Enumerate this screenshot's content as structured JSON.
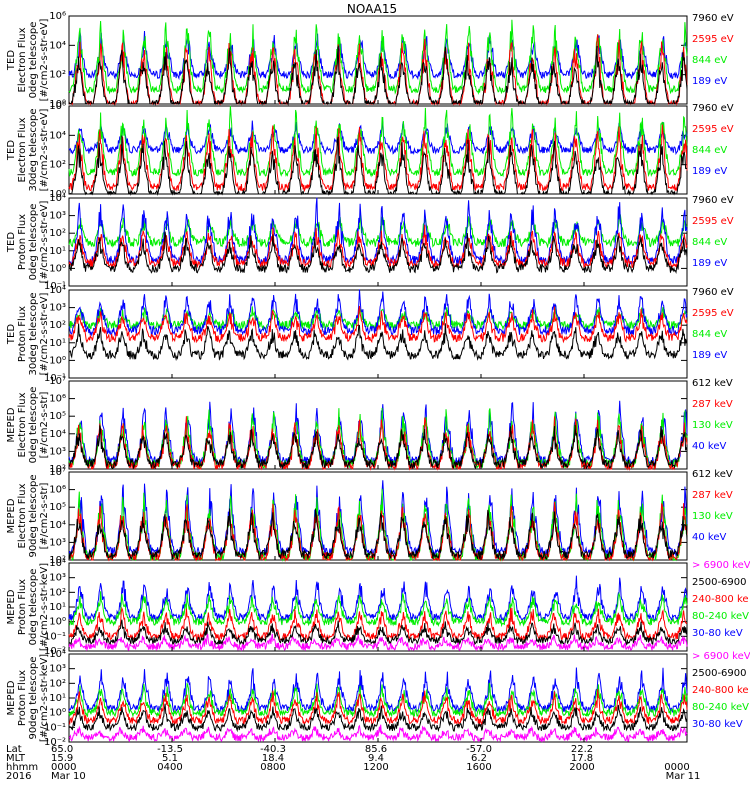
{
  "title": "NOAA15",
  "colors": {
    "blue": "#0000ff",
    "red": "#ff0000",
    "green": "#00ee00",
    "black": "#000000",
    "magenta": "#ff00ff"
  },
  "chart_data": [
    {
      "type": "line",
      "ylabel": [
        "TED",
        "Electron Flux",
        "0deg telescope",
        "[#/cm2-s-str-eV]"
      ],
      "scale": "log",
      "ylim": [
        1,
        1000000
      ],
      "yticks": [
        "10⁰",
        "10²",
        "10⁴",
        "10⁶"
      ],
      "legend": [
        {
          "label": "7960 eV",
          "color": "#000000"
        },
        {
          "label": "2595 eV",
          "color": "#ff0000"
        },
        {
          "label": "844 eV",
          "color": "#00ee00"
        },
        {
          "label": "189 eV",
          "color": "#0000ff"
        }
      ],
      "series": [
        {
          "name": "189 eV",
          "color": "#0000ff",
          "base": 100,
          "peak": 100000
        },
        {
          "name": "844 eV",
          "color": "#00ee00",
          "base": 10,
          "peak": 1000000
        },
        {
          "name": "2595 eV",
          "color": "#ff0000",
          "base": 1,
          "peak": 100000
        },
        {
          "name": "7960 eV",
          "color": "#000000",
          "base": 1,
          "peak": 10000
        }
      ]
    },
    {
      "type": "line",
      "ylabel": [
        "TED",
        "Electron Flux",
        "30deg telescope",
        "[#/cm2-s-str-eV]"
      ],
      "scale": "log",
      "ylim": [
        1,
        1000000
      ],
      "yticks": [
        "10⁰",
        "10²",
        "10⁴",
        "10⁶"
      ],
      "legend": [
        {
          "label": "7960 eV",
          "color": "#000000"
        },
        {
          "label": "2595 eV",
          "color": "#ff0000"
        },
        {
          "label": "844 eV",
          "color": "#00ee00"
        },
        {
          "label": "189 eV",
          "color": "#0000ff"
        }
      ],
      "series": [
        {
          "name": "189 eV",
          "color": "#0000ff",
          "base": 1000,
          "peak": 100000
        },
        {
          "name": "844 eV",
          "color": "#00ee00",
          "base": 30,
          "peak": 1000000
        },
        {
          "name": "2595 eV",
          "color": "#ff0000",
          "base": 3,
          "peak": 100000
        },
        {
          "name": "7960 eV",
          "color": "#000000",
          "base": 1,
          "peak": 10000
        }
      ]
    },
    {
      "type": "line",
      "ylabel": [
        "TED",
        "Proton Flux",
        "0deg telescope",
        "[#/cm2-s-str-eV]"
      ],
      "scale": "log",
      "ylim": [
        0.1,
        10000
      ],
      "yticks": [
        "10⁻¹",
        "10⁰",
        "10¹",
        "10²",
        "10³",
        "10⁴"
      ],
      "legend": [
        {
          "label": "7960 eV",
          "color": "#000000"
        },
        {
          "label": "2595 eV",
          "color": "#ff0000"
        },
        {
          "label": "844 eV",
          "color": "#00ee00"
        },
        {
          "label": "189 eV",
          "color": "#0000ff"
        }
      ],
      "series": [
        {
          "name": "844 eV",
          "color": "#00ee00",
          "base": 30,
          "peak": 1000
        },
        {
          "name": "189 eV",
          "color": "#0000ff",
          "base": 3,
          "peak": 10000
        },
        {
          "name": "2595 eV",
          "color": "#ff0000",
          "base": 2,
          "peak": 300
        },
        {
          "name": "7960 eV",
          "color": "#000000",
          "base": 1,
          "peak": 100
        }
      ]
    },
    {
      "type": "line",
      "ylabel": [
        "TED",
        "Proton Flux",
        "30deg telescope",
        "[#/cm2-s-str-eV]"
      ],
      "scale": "log",
      "ylim": [
        0.1,
        10000
      ],
      "yticks": [
        "10⁻¹",
        "10⁰",
        "10¹",
        "10²",
        "10³",
        "10⁴"
      ],
      "legend": [
        {
          "label": "7960 eV",
          "color": "#000000"
        },
        {
          "label": "2595 eV",
          "color": "#ff0000"
        },
        {
          "label": "844 eV",
          "color": "#00ee00"
        },
        {
          "label": "189 eV",
          "color": "#0000ff"
        }
      ],
      "series": [
        {
          "name": "844 eV",
          "color": "#00ee00",
          "base": 100,
          "peak": 1000
        },
        {
          "name": "189 eV",
          "color": "#0000ff",
          "base": 50,
          "peak": 10000
        },
        {
          "name": "2595 eV",
          "color": "#ff0000",
          "base": 20,
          "peak": 1000
        },
        {
          "name": "7960 eV",
          "color": "#000000",
          "base": 2,
          "peak": 100
        }
      ]
    },
    {
      "type": "line",
      "ylabel": [
        "MEPED",
        "Electron Flux",
        "0deg telescope",
        "[#/cm2-s-str]"
      ],
      "scale": "log",
      "ylim": [
        100,
        10000000
      ],
      "yticks": [
        "10²",
        "10³",
        "10⁴",
        "10⁵",
        "10⁶",
        "10⁷"
      ],
      "legend": [
        {
          "label": "612 keV",
          "color": "#000000"
        },
        {
          "label": "287 keV",
          "color": "#ff0000"
        },
        {
          "label": "130 keV",
          "color": "#00ee00"
        },
        {
          "label": "40 keV",
          "color": "#0000ff"
        }
      ],
      "series": [
        {
          "name": "40 keV",
          "color": "#0000ff",
          "base": 300,
          "peak": 1000000
        },
        {
          "name": "130 keV",
          "color": "#00ee00",
          "base": 200,
          "peak": 300000
        },
        {
          "name": "287 keV",
          "color": "#ff0000",
          "base": 150,
          "peak": 100000
        },
        {
          "name": "612 keV",
          "color": "#000000",
          "base": 200,
          "peak": 30000
        }
      ]
    },
    {
      "type": "line",
      "ylabel": [
        "MEPED",
        "Electron Flux",
        "90deg telescope",
        "[#/cm2-s-str]"
      ],
      "scale": "log",
      "ylim": [
        100,
        10000000
      ],
      "yticks": [
        "10²",
        "10³",
        "10⁴",
        "10⁵",
        "10⁶",
        "10⁷"
      ],
      "legend": [
        {
          "label": "612 keV",
          "color": "#000000"
        },
        {
          "label": "287 keV",
          "color": "#ff0000"
        },
        {
          "label": "130 keV",
          "color": "#00ee00"
        },
        {
          "label": "40 keV",
          "color": "#0000ff"
        }
      ],
      "series": [
        {
          "name": "40 keV",
          "color": "#0000ff",
          "base": 300,
          "peak": 3000000
        },
        {
          "name": "130 keV",
          "color": "#00ee00",
          "base": 150,
          "peak": 1000000
        },
        {
          "name": "287 keV",
          "color": "#ff0000",
          "base": 150,
          "peak": 300000
        },
        {
          "name": "612 keV",
          "color": "#000000",
          "base": 200,
          "peak": 100000
        }
      ]
    },
    {
      "type": "line",
      "ylabel": [
        "MEPED",
        "Proton Flux",
        "0deg telescope",
        "[#/cm2-s-str-keV]"
      ],
      "scale": "log",
      "ylim": [
        0.01,
        10000
      ],
      "yticks": [
        "10⁻²",
        "10⁻¹",
        "10⁰",
        "10¹",
        "10²",
        "10³",
        "10⁴"
      ],
      "legend": [
        {
          "label": "> 6900 keV",
          "color": "#ff00ff"
        },
        {
          "label": "2500-6900",
          "color": "#000000"
        },
        {
          "label": "240-800 ke",
          "color": "#ff0000"
        },
        {
          "label": "80-240 keV",
          "color": "#00ee00"
        },
        {
          "label": "30-80 keV",
          "color": "#0000ff"
        }
      ],
      "series": [
        {
          "name": "30-80 keV",
          "color": "#0000ff",
          "base": 2,
          "peak": 1000
        },
        {
          "name": "80-240 keV",
          "color": "#00ee00",
          "base": 1,
          "peak": 100
        },
        {
          "name": "240-800 ke",
          "color": "#ff0000",
          "base": 0.1,
          "peak": 10
        },
        {
          "name": "2500-6900",
          "color": "#000000",
          "base": 0.05,
          "peak": 1
        },
        {
          "name": "> 6900 keV",
          "color": "#ff00ff",
          "base": 0.02,
          "peak": 0.1
        }
      ]
    },
    {
      "type": "line",
      "ylabel": [
        "MEPED",
        "Proton Flux",
        "90deg telescope",
        "[#/cm2-s-str-keV]"
      ],
      "scale": "log",
      "ylim": [
        0.01,
        10000
      ],
      "yticks": [
        "10⁻²",
        "10⁻¹",
        "10⁰",
        "10¹",
        "10²",
        "10³",
        "10⁴"
      ],
      "legend": [
        {
          "label": "> 6900 keV",
          "color": "#ff00ff"
        },
        {
          "label": "2500-6900",
          "color": "#000000"
        },
        {
          "label": "240-800 ke",
          "color": "#ff0000"
        },
        {
          "label": "80-240 keV",
          "color": "#00ee00"
        },
        {
          "label": "30-80 keV",
          "color": "#0000ff"
        }
      ],
      "series": [
        {
          "name": "30-80 keV",
          "color": "#0000ff",
          "base": 2,
          "peak": 1000
        },
        {
          "name": "80-240 keV",
          "color": "#00ee00",
          "base": 1,
          "peak": 100
        },
        {
          "name": "240-800 ke",
          "color": "#ff0000",
          "base": 0.3,
          "peak": 30
        },
        {
          "name": "2500-6900",
          "color": "#000000",
          "base": 0.1,
          "peak": 3
        },
        {
          "name": "> 6900 keV",
          "color": "#ff00ff",
          "base": 0.02,
          "peak": 0.1
        }
      ]
    }
  ],
  "xaxis": {
    "row_labels": [
      "Lat",
      "MLT",
      "hhmm",
      "2016"
    ],
    "columns": [
      {
        "hhmm": "0000",
        "date": "Mar 10",
        "lat": "65.0",
        "mlt": "15.9"
      },
      {
        "hhmm": "0400",
        "date": "",
        "lat": "-13.5",
        "mlt": "5.1"
      },
      {
        "hhmm": "0800",
        "date": "",
        "lat": "-40.3",
        "mlt": "18.4"
      },
      {
        "hhmm": "1200",
        "date": "",
        "lat": "85.6",
        "mlt": "9.4"
      },
      {
        "hhmm": "1600",
        "date": "",
        "lat": "-57.0",
        "mlt": "6.2"
      },
      {
        "hhmm": "2000",
        "date": "",
        "lat": "22.2",
        "mlt": "17.8"
      },
      {
        "hhmm": "0000",
        "date": "Mar 11",
        "lat": "",
        "mlt": ""
      }
    ]
  }
}
